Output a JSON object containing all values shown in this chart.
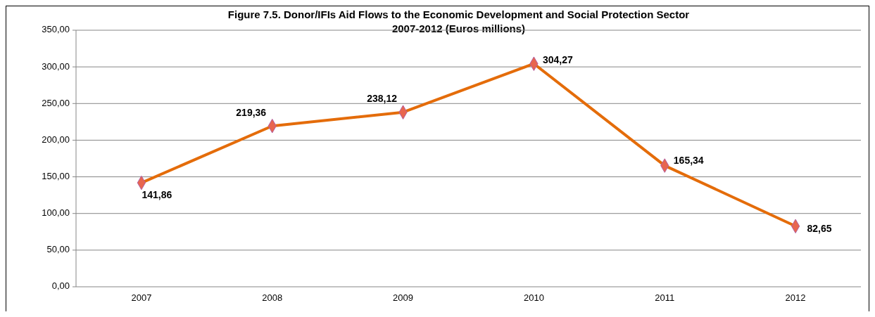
{
  "chart_data": {
    "type": "line",
    "title": "Figure 7.5. Donor/IFIs Aid Flows to the Economic Development and Social Protection Sector\n2007-2012 (Euros millions)",
    "categories": [
      "2007",
      "2008",
      "2009",
      "2010",
      "2011",
      "2012"
    ],
    "series": [
      {
        "color": "#e46c0a",
        "values": [
          141.86,
          219.36,
          238.12,
          304.27,
          165.34,
          82.65
        ],
        "value_labels": [
          "141,86",
          "219,36",
          "238,12",
          "304,27",
          "165,34",
          "82,65"
        ]
      }
    ],
    "marker": "diamond",
    "ylim": [
      0,
      350
    ],
    "yticks": [
      {
        "value": 0,
        "label": "0,00"
      },
      {
        "value": 50,
        "label": "50,00"
      },
      {
        "value": 100,
        "label": "100,00"
      },
      {
        "value": 150,
        "label": "150,00"
      },
      {
        "value": 200,
        "label": "200,00"
      },
      {
        "value": 250,
        "label": "250,00"
      },
      {
        "value": 300,
        "label": "300,00"
      },
      {
        "value": 350,
        "label": "350,00"
      }
    ],
    "grid": "y"
  }
}
